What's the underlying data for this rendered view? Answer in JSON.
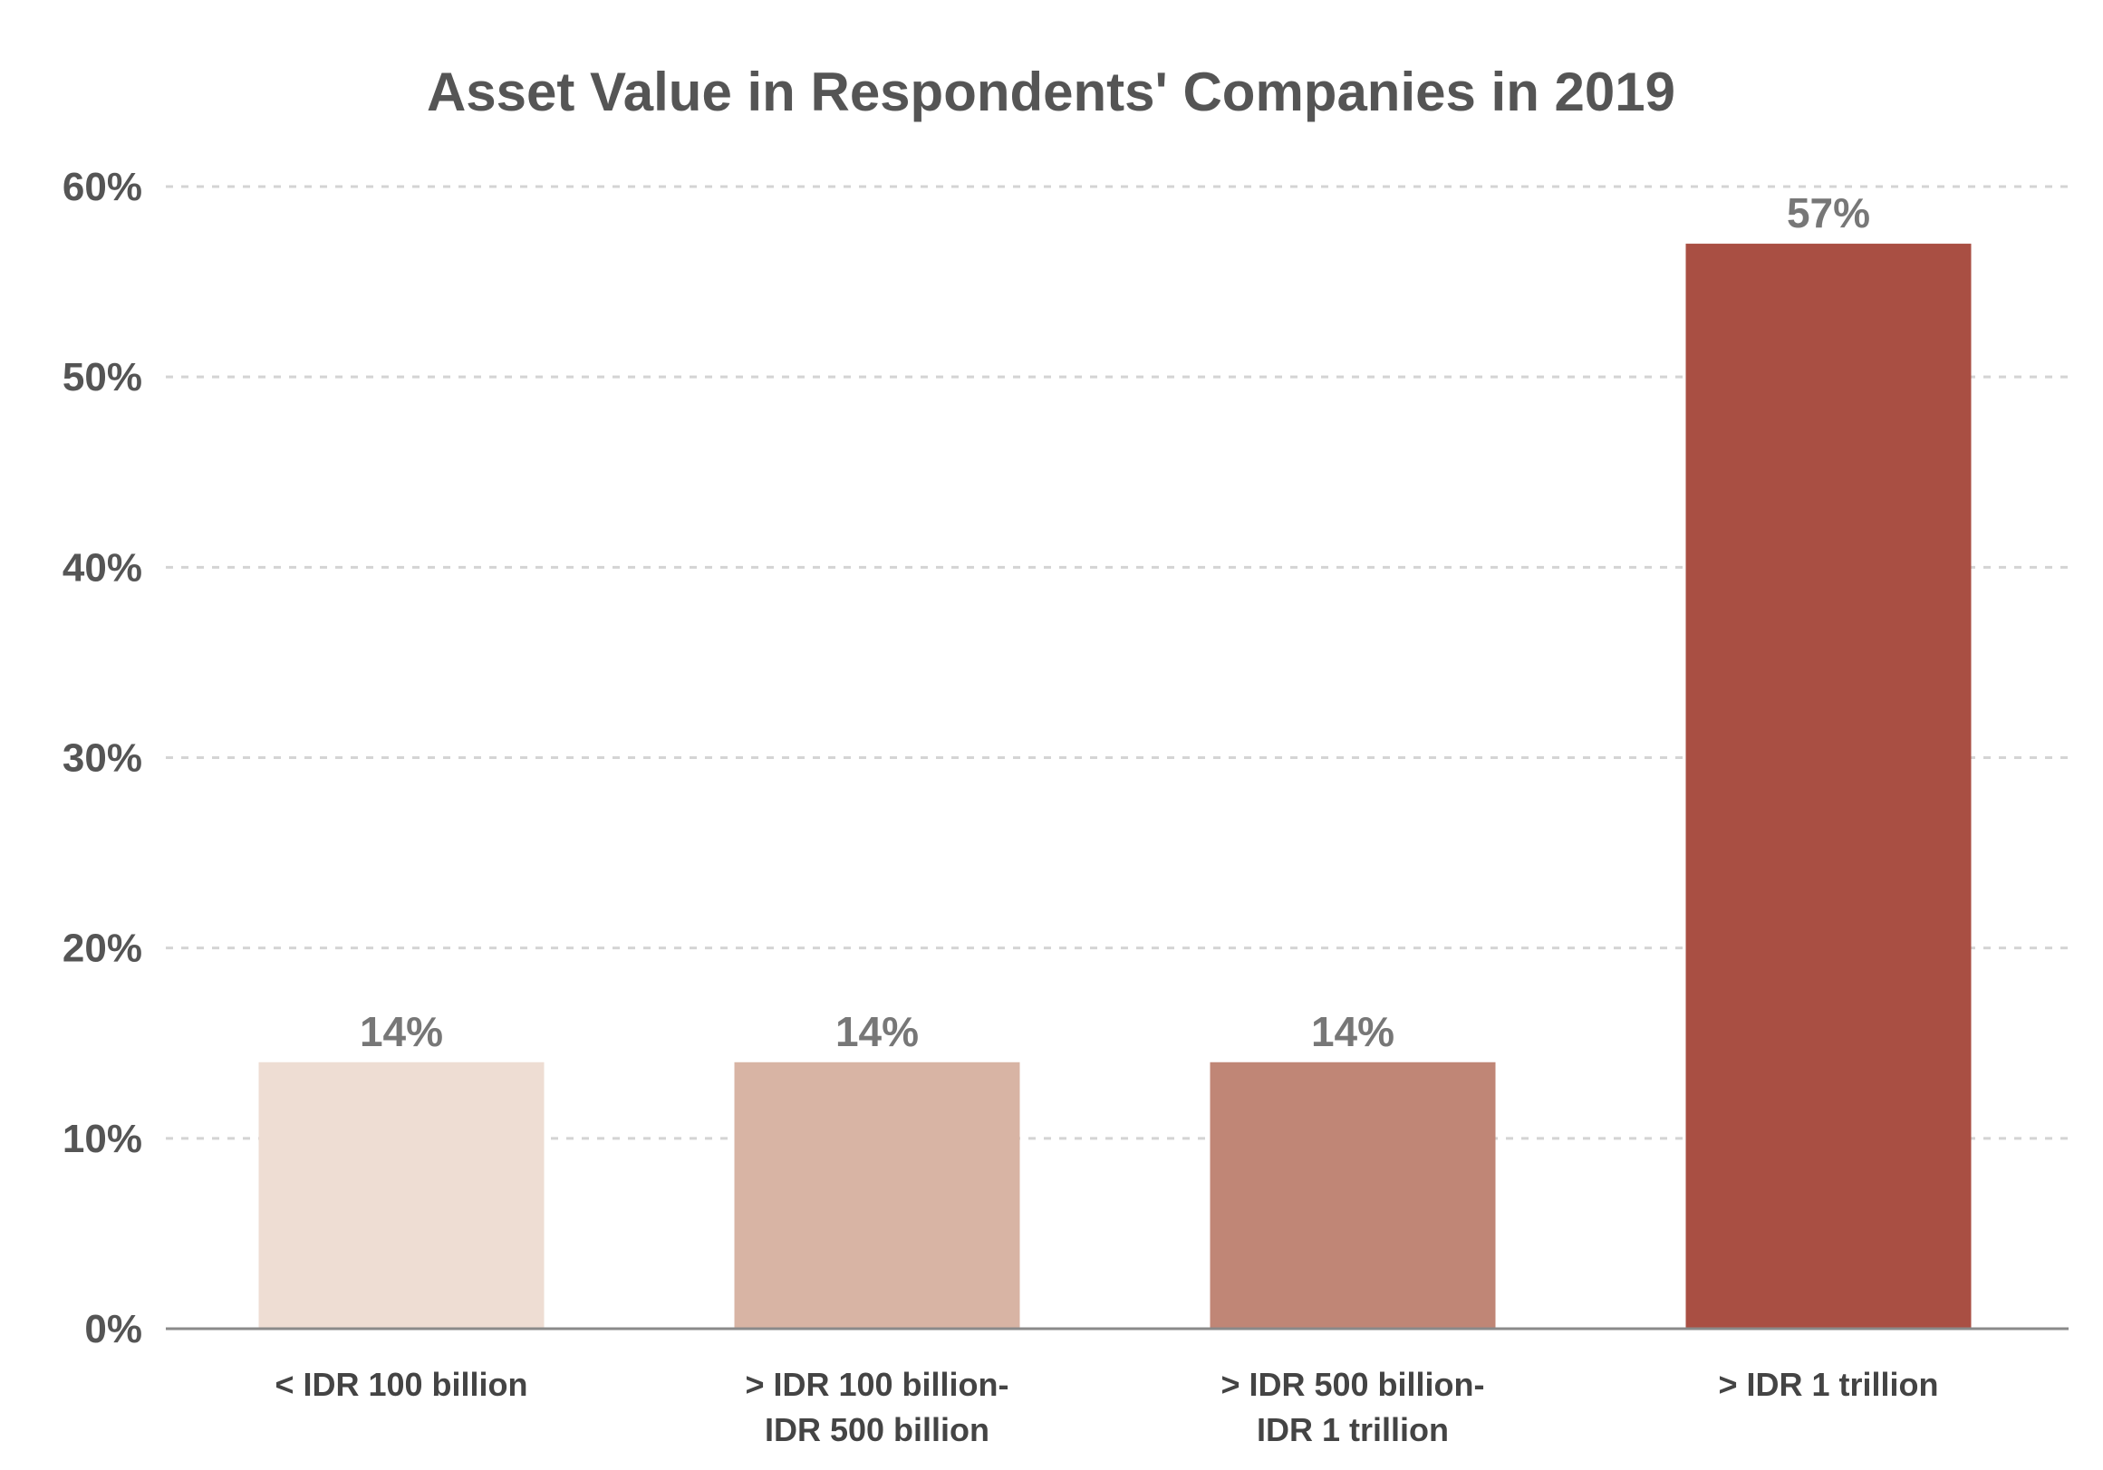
{
  "chart_data": {
    "type": "bar",
    "title": "Asset Value in Respondents' Companies in 2019",
    "categories": [
      [
        "< IDR 100 billion"
      ],
      [
        "> IDR 100 billion-",
        "IDR 500 billion"
      ],
      [
        "> IDR 500 billion-",
        "IDR 1 trillion"
      ],
      [
        "> IDR 1 trillion"
      ]
    ],
    "values": [
      14,
      14,
      14,
      57
    ],
    "data_labels": [
      "14%",
      "14%",
      "14%",
      "57%"
    ],
    "bar_colors": [
      "#eeddd3",
      "#d8b4a4",
      "#c08676",
      "#a94f43"
    ],
    "ylim": [
      0,
      60
    ],
    "yticks": [
      0,
      10,
      20,
      30,
      40,
      50,
      60
    ],
    "ytick_labels": [
      "0%",
      "10%",
      "20%",
      "30%",
      "40%",
      "50%",
      "60%"
    ],
    "xlabel": "",
    "ylabel": "",
    "grid": true,
    "legend": "none"
  }
}
